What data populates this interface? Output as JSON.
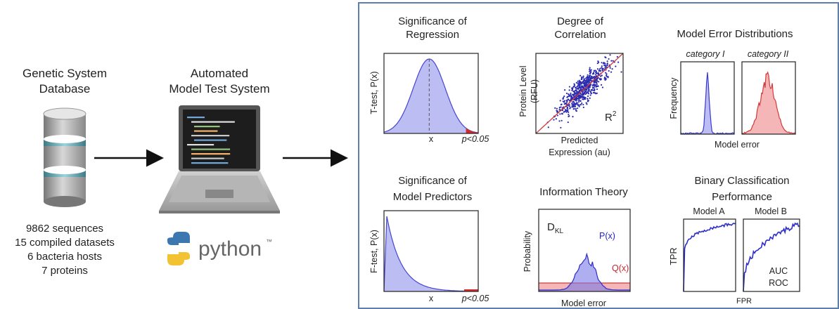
{
  "left": {
    "title": [
      "Genetic System",
      "Database"
    ],
    "stats": [
      "9862 sequences",
      "15 compiled datasets",
      "6 bacteria hosts",
      "7 proteins"
    ]
  },
  "middle": {
    "title": [
      "Automated",
      "Model Test System"
    ],
    "logo": "python",
    "trademark": "™"
  },
  "panels": {
    "regression": {
      "title": [
        "Significance of",
        "Regression"
      ],
      "y_label": "T-test, P(x)",
      "x_label": "x",
      "note": "p<0.05"
    },
    "correlation": {
      "title": [
        "Degree of",
        "Correlation"
      ],
      "y_label": [
        "Protein Level",
        "(RFU)"
      ],
      "x_label": [
        "Predicted",
        "Expression (au)"
      ],
      "metric": {
        "base": "R",
        "sup": "2"
      }
    },
    "error": {
      "title": "Model Error Distributions",
      "categories": [
        "category I",
        "category II"
      ],
      "y_label": "Frequency",
      "x_label": "Model error"
    },
    "predictors": {
      "title": [
        "Significance of",
        "Model Predictors"
      ],
      "y_label": "F-test, P(x)",
      "x_label": "x",
      "note": "p<0.05"
    },
    "information": {
      "title": "Information Theory",
      "y_label": "Probability",
      "metric": {
        "base": "D",
        "sub": "KL"
      },
      "p_label": "P(x)",
      "q_label": "Q(x)",
      "x_label": "Model error"
    },
    "classification": {
      "title": [
        "Binary Classification",
        "Performance"
      ],
      "models": [
        "Model A",
        "Model B"
      ],
      "y_label": "TPR",
      "x_label": "FPR",
      "metric": [
        "AUC",
        "ROC"
      ]
    }
  }
}
